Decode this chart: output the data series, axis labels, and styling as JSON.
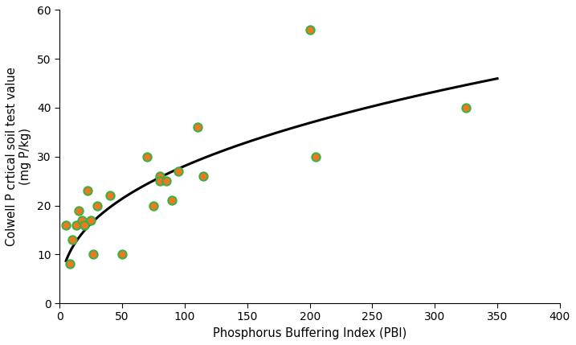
{
  "scatter_x": [
    5,
    8,
    10,
    13,
    15,
    18,
    20,
    22,
    25,
    27,
    30,
    40,
    50,
    70,
    75,
    80,
    80,
    85,
    90,
    95,
    110,
    115,
    200,
    205,
    325
  ],
  "scatter_y": [
    16,
    8,
    13,
    16,
    19,
    17,
    16,
    23,
    17,
    10,
    20,
    22,
    10,
    30,
    20,
    26,
    25,
    25,
    21,
    27,
    36,
    26,
    56,
    30,
    40
  ],
  "curve_a": 4.6,
  "curve_b": 0.393,
  "curve_x_start": 5,
  "curve_x_end": 350,
  "x_min": 0,
  "x_max": 400,
  "y_min": 0,
  "y_max": 60,
  "x_ticks": [
    0,
    50,
    100,
    150,
    200,
    250,
    300,
    350,
    400
  ],
  "y_ticks": [
    0,
    10,
    20,
    30,
    40,
    50,
    60
  ],
  "xlabel": "Phosphorus Buffering Index (PBI)",
  "ylabel": "Colwell P crtical soil test value\n(mg P/kg)",
  "marker_face_color": "#f07820",
  "marker_edge_color": "#3cb043",
  "marker_size": 55,
  "marker_linewidth": 1.5,
  "line_color": "#000000",
  "line_width": 2.2,
  "background_color": "#ffffff",
  "xlabel_fontsize": 10.5,
  "ylabel_fontsize": 10.5,
  "tick_fontsize": 10
}
